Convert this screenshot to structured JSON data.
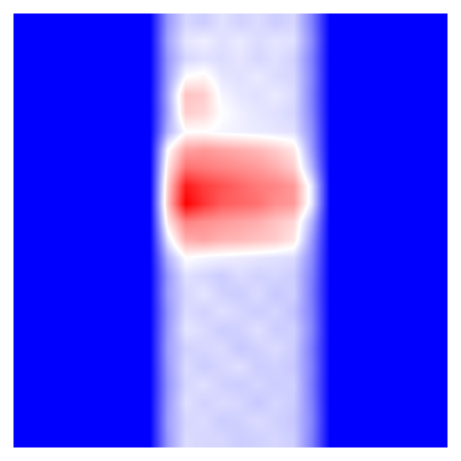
{
  "chart_data": {
    "type": "heatmap",
    "x": [
      0,
      1,
      2,
      3,
      4,
      5,
      6,
      7,
      8,
      9,
      10,
      11,
      12,
      13,
      14,
      15,
      16,
      17,
      18,
      19,
      20,
      21,
      22,
      23
    ],
    "y": [
      0,
      1,
      2,
      3,
      4,
      5,
      6,
      7,
      8,
      9,
      10,
      11,
      12,
      13,
      14,
      15,
      16,
      17,
      18,
      19,
      20,
      21,
      22,
      23
    ],
    "xlim": [
      -0.5,
      23.5
    ],
    "ylim": [
      23.5,
      -0.5
    ],
    "zlim": [
      0,
      1
    ],
    "tick_labels": false,
    "grid": false,
    "z": [
      [
        0,
        0,
        0,
        0,
        0,
        0,
        0,
        0,
        0.3,
        0.42,
        0.4,
        0.44,
        0.41,
        0.43,
        0.4,
        0.42,
        0.25,
        0,
        0,
        0,
        0,
        0,
        0,
        0
      ],
      [
        0,
        0,
        0,
        0,
        0,
        0,
        0,
        0,
        0.32,
        0.45,
        0.47,
        0.44,
        0.46,
        0.43,
        0.45,
        0.44,
        0.27,
        0,
        0,
        0,
        0,
        0,
        0,
        0
      ],
      [
        0,
        0,
        0,
        0,
        0,
        0,
        0,
        0,
        0.3,
        0.42,
        0.44,
        0.43,
        0.45,
        0.42,
        0.44,
        0.41,
        0.25,
        0,
        0,
        0,
        0,
        0,
        0,
        0
      ],
      [
        0,
        0,
        0,
        0,
        0,
        0,
        0,
        0,
        0.31,
        0.5,
        0.52,
        0.45,
        0.44,
        0.46,
        0.43,
        0.42,
        0.26,
        0,
        0,
        0,
        0,
        0,
        0,
        0
      ],
      [
        0,
        0,
        0,
        0,
        0,
        0,
        0,
        0,
        0.33,
        0.62,
        0.6,
        0.48,
        0.45,
        0.44,
        0.46,
        0.43,
        0.25,
        0,
        0,
        0,
        0,
        0,
        0,
        0
      ],
      [
        0,
        0,
        0,
        0,
        0,
        0,
        0,
        0,
        0.32,
        0.6,
        0.58,
        0.5,
        0.47,
        0.45,
        0.44,
        0.42,
        0.26,
        0,
        0,
        0,
        0,
        0,
        0,
        0
      ],
      [
        0,
        0,
        0,
        0,
        0,
        0,
        0,
        0,
        0.35,
        0.5,
        0.5,
        0.48,
        0.47,
        0.46,
        0.45,
        0.44,
        0.28,
        0,
        0,
        0,
        0,
        0,
        0,
        0
      ],
      [
        0,
        0,
        0,
        0,
        0,
        0,
        0,
        0,
        0.5,
        0.68,
        0.7,
        0.68,
        0.66,
        0.64,
        0.6,
        0.55,
        0.3,
        0,
        0,
        0,
        0,
        0,
        0,
        0
      ],
      [
        0,
        0,
        0,
        0,
        0,
        0,
        0,
        0,
        0.55,
        0.78,
        0.76,
        0.74,
        0.72,
        0.7,
        0.66,
        0.6,
        0.35,
        0,
        0,
        0,
        0,
        0,
        0,
        0
      ],
      [
        0,
        0,
        0,
        0,
        0,
        0,
        0,
        0,
        0.6,
        0.95,
        0.88,
        0.84,
        0.8,
        0.76,
        0.74,
        0.7,
        0.45,
        0,
        0,
        0,
        0,
        0,
        0,
        0
      ],
      [
        0,
        0,
        0,
        0,
        0,
        0,
        0,
        0,
        0.62,
        1.0,
        0.9,
        0.82,
        0.8,
        0.78,
        0.72,
        0.7,
        0.45,
        0,
        0,
        0,
        0,
        0,
        0,
        0
      ],
      [
        0,
        0,
        0,
        0,
        0,
        0,
        0,
        0,
        0.55,
        0.75,
        0.72,
        0.7,
        0.68,
        0.66,
        0.62,
        0.58,
        0.35,
        0,
        0,
        0,
        0,
        0,
        0,
        0
      ],
      [
        0,
        0,
        0,
        0,
        0,
        0,
        0,
        0,
        0.45,
        0.66,
        0.68,
        0.65,
        0.64,
        0.62,
        0.6,
        0.55,
        0.3,
        0,
        0,
        0,
        0,
        0,
        0,
        0
      ],
      [
        0,
        0,
        0,
        0,
        0,
        0,
        0,
        0,
        0.35,
        0.5,
        0.48,
        0.47,
        0.46,
        0.45,
        0.44,
        0.43,
        0.27,
        0,
        0,
        0,
        0,
        0,
        0,
        0
      ],
      [
        0,
        0,
        0,
        0,
        0,
        0,
        0,
        0,
        0.3,
        0.44,
        0.42,
        0.4,
        0.43,
        0.41,
        0.42,
        0.4,
        0.25,
        0,
        0,
        0,
        0,
        0,
        0,
        0
      ],
      [
        0,
        0,
        0,
        0,
        0,
        0,
        0,
        0,
        0.31,
        0.42,
        0.45,
        0.41,
        0.4,
        0.43,
        0.39,
        0.41,
        0.24,
        0,
        0,
        0,
        0,
        0,
        0,
        0
      ],
      [
        0,
        0,
        0,
        0,
        0,
        0,
        0,
        0,
        0.29,
        0.43,
        0.41,
        0.44,
        0.42,
        0.4,
        0.42,
        0.38,
        0.25,
        0,
        0,
        0,
        0,
        0,
        0,
        0
      ],
      [
        0,
        0,
        0,
        0,
        0,
        0,
        0,
        0,
        0.3,
        0.45,
        0.43,
        0.4,
        0.41,
        0.44,
        0.4,
        0.41,
        0.26,
        0,
        0,
        0,
        0,
        0,
        0,
        0
      ],
      [
        0,
        0,
        0,
        0,
        0,
        0,
        0,
        0,
        0.31,
        0.41,
        0.42,
        0.43,
        0.39,
        0.41,
        0.43,
        0.4,
        0.24,
        0,
        0,
        0,
        0,
        0,
        0,
        0
      ],
      [
        0,
        0,
        0,
        0,
        0,
        0,
        0,
        0,
        0.3,
        0.43,
        0.4,
        0.42,
        0.44,
        0.4,
        0.41,
        0.39,
        0.25,
        0,
        0,
        0,
        0,
        0,
        0,
        0
      ],
      [
        0,
        0,
        0,
        0,
        0,
        0,
        0,
        0,
        0.29,
        0.42,
        0.44,
        0.41,
        0.4,
        0.42,
        0.4,
        0.41,
        0.24,
        0,
        0,
        0,
        0,
        0,
        0,
        0
      ],
      [
        0,
        0,
        0,
        0,
        0,
        0,
        0,
        0,
        0.3,
        0.44,
        0.41,
        0.43,
        0.42,
        0.39,
        0.42,
        0.4,
        0.25,
        0,
        0,
        0,
        0,
        0,
        0,
        0
      ],
      [
        0,
        0,
        0,
        0,
        0,
        0,
        0,
        0,
        0.31,
        0.42,
        0.43,
        0.4,
        0.41,
        0.43,
        0.41,
        0.39,
        0.26,
        0,
        0,
        0,
        0,
        0,
        0,
        0
      ],
      [
        0,
        0,
        0,
        0,
        0,
        0,
        0,
        0,
        0.3,
        0.43,
        0.42,
        0.42,
        0.4,
        0.41,
        0.42,
        0.4,
        0.25,
        0,
        0,
        0,
        0,
        0,
        0,
        0
      ]
    ]
  }
}
